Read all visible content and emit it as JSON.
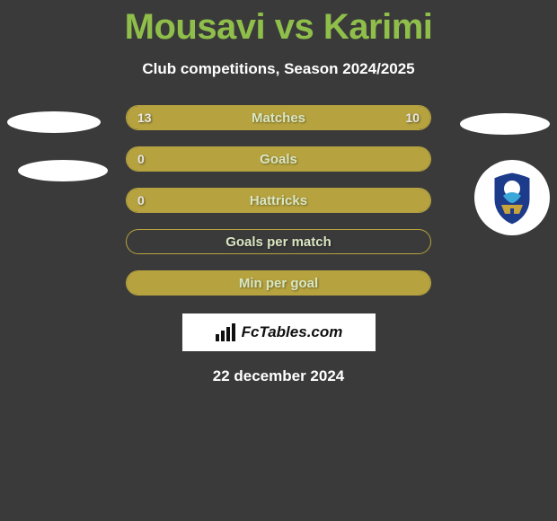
{
  "title": "Mousavi vs Karimi",
  "subtitle": "Club competitions, Season 2024/2025",
  "rows": [
    {
      "label": "Matches",
      "left": "13",
      "right": "10",
      "fill_left_pct": 56,
      "fill_right_pct": 44
    },
    {
      "label": "Goals",
      "left": "0",
      "right": "",
      "fill_left_pct": 100,
      "fill_right_pct": 0
    },
    {
      "label": "Hattricks",
      "left": "0",
      "right": "",
      "fill_left_pct": 100,
      "fill_right_pct": 0
    },
    {
      "label": "Goals per match",
      "left": "",
      "right": "",
      "fill_left_pct": 0,
      "fill_right_pct": 0
    },
    {
      "label": "Min per goal",
      "left": "",
      "right": "",
      "fill_left_pct": 100,
      "fill_right_pct": 0
    }
  ],
  "badge_text": "FcTables.com",
  "date": "22 december 2024",
  "colors": {
    "bg": "#3a3a3a",
    "accent": "#8fbf4a",
    "bar": "#b6a33f",
    "white": "#ffffff"
  },
  "decor": {
    "crest_primary": "#1c3b8a",
    "crest_accent": "#3aa7d8",
    "crest_gold": "#c8a23a"
  }
}
